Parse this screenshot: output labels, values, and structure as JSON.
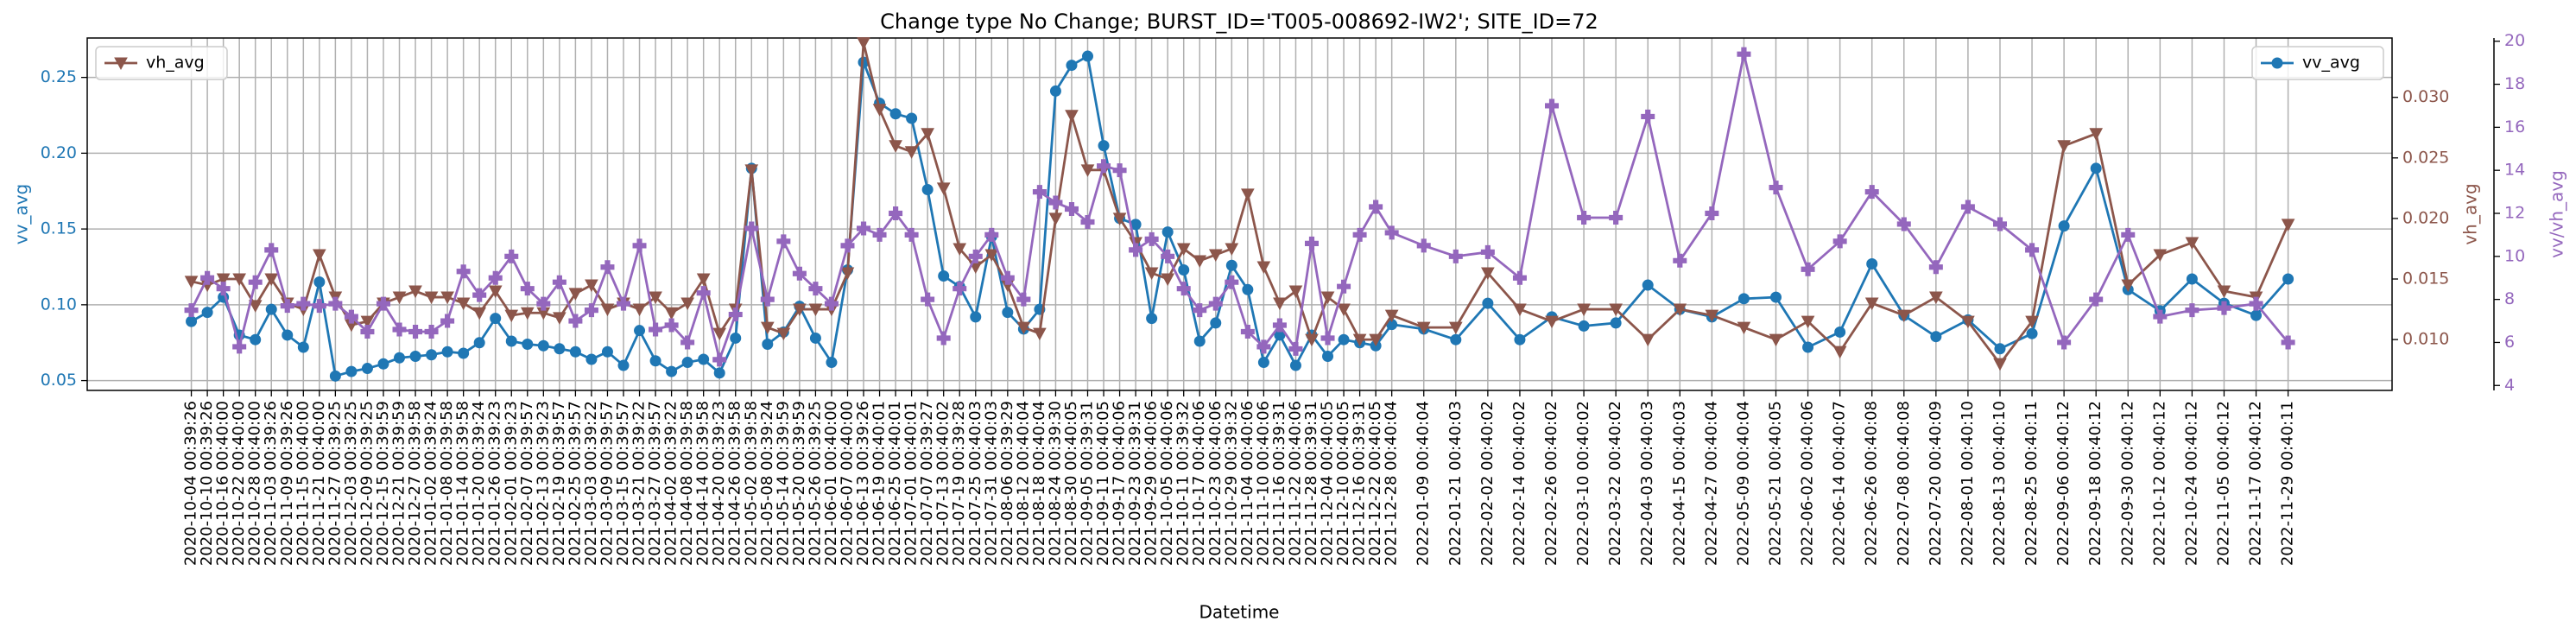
{
  "chart_data": {
    "type": "line",
    "title": "Change type No Change; BURST_ID='T005-008692-IW2'; SITE_ID=72",
    "xlabel": "Datetime",
    "ylabel": "vv_avg",
    "y2label": "vh_avg",
    "y3label": "vv/vh_avg",
    "x": [
      "2020-10-04 00:39:26",
      "2020-10-10 00:39:26",
      "2020-10-16 00:40:00",
      "2020-10-22 00:40:00",
      "2020-10-28 00:40:00",
      "2020-11-03 00:39:26",
      "2020-11-09 00:39:26",
      "2020-11-15 00:40:00",
      "2020-11-21 00:40:00",
      "2020-11-27 00:39:25",
      "2020-12-03 00:39:25",
      "2020-12-09 00:39:25",
      "2020-12-15 00:39:59",
      "2020-12-21 00:39:59",
      "2020-12-27 00:39:58",
      "2021-01-02 00:39:24",
      "2021-01-08 00:39:58",
      "2021-01-14 00:39:58",
      "2021-01-20 00:39:24",
      "2021-01-26 00:39:23",
      "2021-02-01 00:39:23",
      "2021-02-07 00:39:57",
      "2021-02-13 00:39:23",
      "2021-02-19 00:39:57",
      "2021-02-25 00:39:57",
      "2021-03-03 00:39:22",
      "2021-03-09 00:39:57",
      "2021-03-15 00:39:57",
      "2021-03-21 00:39:22",
      "2021-03-27 00:39:57",
      "2021-04-02 00:39:22",
      "2021-04-08 00:39:58",
      "2021-04-14 00:39:58",
      "2021-04-20 00:39:23",
      "2021-04-26 00:39:58",
      "2021-05-02 00:39:58",
      "2021-05-08 00:39:24",
      "2021-05-14 00:39:59",
      "2021-05-20 00:39:59",
      "2021-05-26 00:39:25",
      "2021-06-01 00:40:00",
      "2021-06-07 00:40:00",
      "2021-06-13 00:39:26",
      "2021-06-19 00:40:01",
      "2021-06-25 00:40:01",
      "2021-07-01 00:40:01",
      "2021-07-07 00:39:27",
      "2021-07-13 00:40:02",
      "2021-07-19 00:39:28",
      "2021-07-25 00:40:03",
      "2021-07-31 00:40:03",
      "2021-08-06 00:39:29",
      "2021-08-12 00:40:04",
      "2021-08-18 00:40:04",
      "2021-08-24 00:39:30",
      "2021-08-30 00:40:05",
      "2021-09-05 00:39:31",
      "2021-09-11 00:40:05",
      "2021-09-17 00:40:06",
      "2021-09-23 00:39:31",
      "2021-09-29 00:40:06",
      "2021-10-05 00:40:06",
      "2021-10-11 00:39:32",
      "2021-10-17 00:40:06",
      "2021-10-23 00:40:06",
      "2021-10-29 00:39:32",
      "2021-11-04 00:40:06",
      "2021-11-10 00:40:06",
      "2021-11-16 00:39:31",
      "2021-11-22 00:40:06",
      "2021-11-28 00:39:31",
      "2021-12-04 00:40:05",
      "2021-12-10 00:40:05",
      "2021-12-16 00:39:31",
      "2021-12-22 00:40:05",
      "2021-12-28 00:40:04",
      "2022-01-09 00:40:04",
      "2022-01-21 00:40:03",
      "2022-02-02 00:40:02",
      "2022-02-14 00:40:02",
      "2022-02-26 00:40:02",
      "2022-03-10 00:40:02",
      "2022-03-22 00:40:02",
      "2022-04-03 00:40:03",
      "2022-04-15 00:40:03",
      "2022-04-27 00:40:04",
      "2022-05-09 00:40:04",
      "2022-05-21 00:40:05",
      "2022-06-02 00:40:06",
      "2022-06-14 00:40:07",
      "2022-06-26 00:40:08",
      "2022-07-08 00:40:08",
      "2022-07-20 00:40:09",
      "2022-08-01 00:40:10",
      "2022-08-13 00:40:10",
      "2022-08-25 00:40:11",
      "2022-09-06 00:40:12",
      "2022-09-18 00:40:12",
      "2022-09-30 00:40:12",
      "2022-10-12 00:40:12",
      "2022-10-24 00:40:12",
      "2022-11-05 00:40:12",
      "2022-11-17 00:40:12",
      "2022-11-29 00:40:11"
    ],
    "xlim": [
      "2020-08-26 00:00:00",
      "2023-01-07 00:00:00"
    ],
    "ylim": [
      0.0435,
      0.276
    ],
    "yticks": [
      0.05,
      {
        "value": 0.1,
        "label": "0.10"
      },
      0.15,
      {
        "value": 0.2,
        "label": "0.20"
      },
      0.25
    ],
    "y2lim": [
      0.0058,
      0.0349
    ],
    "y2ticks": [
      {
        "value": 0.01,
        "label": "0.010"
      },
      {
        "value": 0.015,
        "label": "0.015"
      },
      {
        "value": 0.02,
        "label": "0.020"
      },
      {
        "value": 0.025,
        "label": "0.025"
      },
      {
        "value": 0.03,
        "label": "0.030"
      }
    ],
    "y3lim": [
      3.77,
      20.15
    ],
    "y3ticks": [
      4,
      6,
      8,
      10,
      12,
      14,
      16,
      18,
      20
    ],
    "grid": true,
    "series": [
      {
        "name": "vv_avg",
        "color": "#1f77b4",
        "marker": "o",
        "axis": "y",
        "legend": "upper right",
        "values": [
          0.089,
          0.095,
          0.105,
          0.08,
          0.077,
          0.097,
          0.08,
          0.072,
          0.115,
          0.053,
          0.056,
          0.058,
          0.061,
          0.065,
          0.066,
          0.067,
          0.069,
          0.068,
          0.075,
          0.091,
          0.076,
          0.074,
          0.073,
          0.071,
          0.069,
          0.064,
          0.069,
          0.06,
          0.083,
          0.063,
          0.056,
          0.062,
          0.064,
          0.055,
          0.078,
          0.19,
          0.074,
          0.082,
          0.099,
          0.078,
          0.062,
          0.123,
          0.26,
          0.233,
          0.226,
          0.223,
          0.176,
          0.119,
          0.112,
          0.092,
          0.145,
          0.095,
          0.084,
          0.097,
          0.241,
          0.258,
          0.264,
          0.205,
          0.157,
          0.153,
          0.091,
          0.148,
          0.123,
          0.076,
          0.088,
          0.126,
          0.11,
          0.062,
          0.08,
          0.06,
          0.08,
          0.066,
          0.077,
          0.075,
          0.073,
          0.087,
          0.084,
          0.077,
          0.101,
          0.077,
          0.092,
          0.086,
          0.088,
          0.113,
          0.097,
          0.092,
          0.104,
          0.105,
          0.072,
          0.082,
          0.127,
          0.093,
          0.079,
          0.09,
          0.071,
          0.081,
          0.152,
          0.19,
          0.11,
          0.096,
          0.117,
          0.101,
          0.093,
          0.117
        ]
      },
      {
        "name": "vh_avg",
        "color": "#8c564b",
        "marker": "v",
        "axis": "y2",
        "legend": "upper left",
        "values": [
          0.0148,
          0.0145,
          0.015,
          0.015,
          0.0128,
          0.015,
          0.013,
          0.0125,
          0.017,
          0.0135,
          0.0112,
          0.0115,
          0.013,
          0.0135,
          0.014,
          0.0135,
          0.0135,
          0.013,
          0.0122,
          0.014,
          0.012,
          0.0122,
          0.0122,
          0.0118,
          0.0138,
          0.0145,
          0.0125,
          0.013,
          0.0125,
          0.0135,
          0.0122,
          0.013,
          0.015,
          0.0105,
          0.0125,
          0.024,
          0.011,
          0.0105,
          0.0125,
          0.0125,
          0.0125,
          0.0155,
          0.0345,
          0.029,
          0.026,
          0.0255,
          0.027,
          0.0225,
          0.0175,
          0.016,
          0.017,
          0.0145,
          0.011,
          0.0105,
          0.02,
          0.0285,
          0.024,
          0.024,
          0.02,
          0.018,
          0.0155,
          0.015,
          0.0175,
          0.0165,
          0.017,
          0.0175,
          0.022,
          0.016,
          0.013,
          0.014,
          0.01,
          0.0135,
          0.0125,
          0.01,
          0.01,
          0.012,
          0.011,
          0.011,
          0.0155,
          0.0125,
          0.0115,
          0.0125,
          0.0125,
          0.01,
          0.0125,
          0.012,
          0.011,
          0.01,
          0.0115,
          0.009,
          0.013,
          0.012,
          0.0135,
          0.0115,
          0.008,
          0.0115,
          0.026,
          0.027,
          0.0145,
          0.017,
          0.018,
          0.014,
          0.0135,
          0.0195
        ]
      },
      {
        "color": "#9467bd",
        "marker": "P",
        "axis": "y3",
        "values": [
          7.5,
          9.0,
          8.5,
          5.8,
          8.8,
          10.3,
          7.7,
          7.8,
          7.7,
          7.8,
          7.2,
          6.5,
          7.8,
          6.6,
          6.5,
          6.5,
          7.0,
          9.3,
          8.2,
          9.0,
          10.0,
          8.5,
          7.8,
          8.8,
          7.0,
          7.5,
          9.5,
          7.8,
          10.5,
          6.6,
          6.8,
          6.0,
          8.3,
          5.2,
          7.3,
          11.3,
          8.0,
          10.7,
          9.2,
          8.5,
          7.8,
          10.5,
          11.3,
          11.0,
          12.0,
          11.0,
          8.0,
          6.2,
          8.5,
          10.0,
          11.0,
          9.0,
          8.0,
          13.0,
          12.5,
          12.2,
          11.6,
          14.2,
          14.0,
          10.3,
          10.8,
          10.0,
          8.5,
          7.5,
          7.8,
          8.8,
          6.5,
          5.8,
          6.8,
          5.7,
          10.6,
          6.2,
          8.6,
          11.0,
          12.3,
          11.1,
          10.5,
          10.0,
          10.2,
          9.0,
          17.0,
          11.8,
          11.8,
          16.5,
          9.8,
          12.0,
          19.4,
          13.2,
          9.4,
          10.7,
          13.0,
          11.5,
          9.5,
          12.3,
          11.5,
          10.3,
          6.0,
          8.0,
          11.0,
          7.2,
          7.5,
          7.6,
          7.8,
          6.0
        ]
      }
    ]
  }
}
